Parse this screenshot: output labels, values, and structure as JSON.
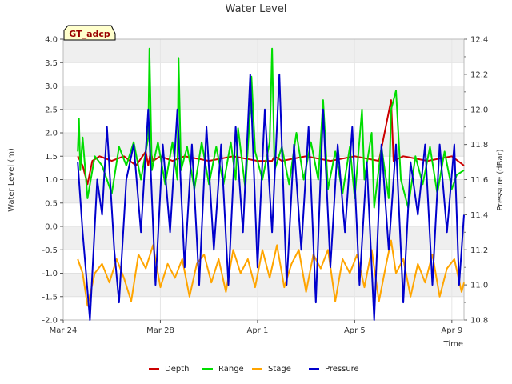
{
  "chart_data": {
    "type": "line",
    "title": "Water Level",
    "xlabel": "Time",
    "ylabel": "Water Level (m)",
    "y2label": "Pressure (dBar)",
    "badge": "GT_adcp",
    "xlim_days": [
      0,
      16.5
    ],
    "x_ticks": [
      {
        "day": 0,
        "label": "Mar 24"
      },
      {
        "day": 4,
        "label": "Mar 28"
      },
      {
        "day": 8,
        "label": "Apr 1"
      },
      {
        "day": 12,
        "label": "Apr 5"
      },
      {
        "day": 16,
        "label": "Apr 9"
      }
    ],
    "ylim": [
      -2.0,
      4.0
    ],
    "y_ticks": [
      "-2.0",
      "-1.5",
      "-1.0",
      "-0.5",
      "0.0",
      "0.5",
      "1.0",
      "1.5",
      "2.0",
      "2.5",
      "3.0",
      "3.5",
      "4.0"
    ],
    "y2lim": [
      10.8,
      12.4
    ],
    "y2_ticks": [
      "10.8",
      "11.0",
      "11.2",
      "11.4",
      "11.6",
      "11.8",
      "12.0",
      "12.2",
      "12.4"
    ],
    "grid": true,
    "legend_position": "bottom-center",
    "series": [
      {
        "name": "Depth",
        "color": "#cc0000",
        "axis": "left",
        "points": [
          [
            0.6,
            1.5
          ],
          [
            0.8,
            1.3
          ],
          [
            1.0,
            0.9
          ],
          [
            1.2,
            1.4
          ],
          [
            1.5,
            1.5
          ],
          [
            2.0,
            1.4
          ],
          [
            2.5,
            1.5
          ],
          [
            3.0,
            1.3
          ],
          [
            3.4,
            1.6
          ],
          [
            3.5,
            1.3
          ],
          [
            3.6,
            1.6
          ],
          [
            3.7,
            1.4
          ],
          [
            4.0,
            1.5
          ],
          [
            4.5,
            1.4
          ],
          [
            5.0,
            1.5
          ],
          [
            6.0,
            1.4
          ],
          [
            7.0,
            1.5
          ],
          [
            8.0,
            1.4
          ],
          [
            8.6,
            1.4
          ],
          [
            8.7,
            1.5
          ],
          [
            9.0,
            1.4
          ],
          [
            10.0,
            1.5
          ],
          [
            11.0,
            1.4
          ],
          [
            12.0,
            1.5
          ],
          [
            13.0,
            1.4
          ],
          [
            13.5,
            2.7
          ],
          [
            13.6,
            1.4
          ],
          [
            14.0,
            1.5
          ],
          [
            15.0,
            1.4
          ],
          [
            16.0,
            1.5
          ],
          [
            16.5,
            1.3
          ]
        ]
      },
      {
        "name": "Range",
        "color": "#00dd00",
        "axis": "left",
        "points": [
          [
            0.6,
            1.6
          ],
          [
            0.65,
            2.3
          ],
          [
            0.7,
            1.2
          ],
          [
            0.8,
            1.9
          ],
          [
            1.0,
            0.6
          ],
          [
            1.3,
            1.5
          ],
          [
            1.6,
            1.3
          ],
          [
            2.0,
            0.7
          ],
          [
            2.3,
            1.7
          ],
          [
            2.6,
            1.3
          ],
          [
            2.9,
            1.8
          ],
          [
            3.2,
            1.0
          ],
          [
            3.5,
            1.9
          ],
          [
            3.55,
            3.8
          ],
          [
            3.65,
            1.2
          ],
          [
            3.9,
            1.8
          ],
          [
            4.2,
            0.9
          ],
          [
            4.5,
            1.8
          ],
          [
            4.7,
            1.0
          ],
          [
            4.75,
            3.6
          ],
          [
            4.85,
            1.2
          ],
          [
            5.1,
            1.7
          ],
          [
            5.4,
            0.8
          ],
          [
            5.7,
            1.8
          ],
          [
            6.0,
            0.9
          ],
          [
            6.3,
            1.7
          ],
          [
            6.6,
            0.9
          ],
          [
            6.9,
            1.8
          ],
          [
            7.1,
            1.0
          ],
          [
            7.2,
            2.1
          ],
          [
            7.5,
            0.8
          ],
          [
            7.7,
            2.5
          ],
          [
            7.75,
            3.2
          ],
          [
            7.9,
            1.6
          ],
          [
            8.2,
            1.0
          ],
          [
            8.5,
            1.8
          ],
          [
            8.6,
            3.8
          ],
          [
            8.7,
            1.2
          ],
          [
            9.0,
            1.7
          ],
          [
            9.3,
            0.9
          ],
          [
            9.6,
            2.0
          ],
          [
            9.9,
            1.0
          ],
          [
            10.2,
            1.8
          ],
          [
            10.5,
            1.0
          ],
          [
            10.7,
            2.7
          ],
          [
            10.9,
            0.8
          ],
          [
            11.2,
            1.6
          ],
          [
            11.5,
            0.7
          ],
          [
            11.8,
            1.7
          ],
          [
            12.0,
            0.6
          ],
          [
            12.3,
            2.5
          ],
          [
            12.4,
            1.0
          ],
          [
            12.7,
            2.0
          ],
          [
            12.8,
            0.4
          ],
          [
            13.1,
            1.7
          ],
          [
            13.4,
            0.6
          ],
          [
            13.5,
            2.5
          ],
          [
            13.7,
            2.9
          ],
          [
            13.9,
            1.0
          ],
          [
            14.2,
            0.4
          ],
          [
            14.5,
            1.5
          ],
          [
            14.8,
            0.9
          ],
          [
            15.1,
            1.7
          ],
          [
            15.4,
            0.7
          ],
          [
            15.7,
            1.6
          ],
          [
            16.0,
            0.8
          ],
          [
            16.2,
            1.1
          ],
          [
            16.5,
            1.2
          ]
        ]
      },
      {
        "name": "Stage",
        "color": "#ffa500",
        "axis": "left",
        "points": [
          [
            0.6,
            -0.7
          ],
          [
            0.8,
            -1.0
          ],
          [
            1.0,
            -1.7
          ],
          [
            1.3,
            -1.0
          ],
          [
            1.6,
            -0.8
          ],
          [
            1.9,
            -1.2
          ],
          [
            2.2,
            -0.7
          ],
          [
            2.5,
            -1.1
          ],
          [
            2.8,
            -1.6
          ],
          [
            3.1,
            -0.6
          ],
          [
            3.4,
            -0.9
          ],
          [
            3.7,
            -0.4
          ],
          [
            4.0,
            -1.3
          ],
          [
            4.3,
            -0.8
          ],
          [
            4.6,
            -1.1
          ],
          [
            4.9,
            -0.7
          ],
          [
            5.2,
            -1.5
          ],
          [
            5.5,
            -0.8
          ],
          [
            5.8,
            -0.6
          ],
          [
            6.1,
            -1.2
          ],
          [
            6.4,
            -0.7
          ],
          [
            6.7,
            -1.4
          ],
          [
            7.0,
            -0.5
          ],
          [
            7.3,
            -1.0
          ],
          [
            7.6,
            -0.7
          ],
          [
            7.9,
            -1.3
          ],
          [
            8.2,
            -0.5
          ],
          [
            8.5,
            -1.1
          ],
          [
            8.8,
            -0.4
          ],
          [
            9.1,
            -1.3
          ],
          [
            9.4,
            -0.8
          ],
          [
            9.7,
            -0.5
          ],
          [
            10.0,
            -1.4
          ],
          [
            10.3,
            -0.6
          ],
          [
            10.6,
            -0.9
          ],
          [
            10.9,
            -0.5
          ],
          [
            11.2,
            -1.6
          ],
          [
            11.5,
            -0.7
          ],
          [
            11.8,
            -1.0
          ],
          [
            12.1,
            -0.6
          ],
          [
            12.4,
            -1.3
          ],
          [
            12.7,
            -0.5
          ],
          [
            13.0,
            -1.6
          ],
          [
            13.3,
            -0.8
          ],
          [
            13.5,
            -0.3
          ],
          [
            13.7,
            -1.0
          ],
          [
            14.0,
            -0.7
          ],
          [
            14.3,
            -1.5
          ],
          [
            14.6,
            -0.8
          ],
          [
            14.9,
            -1.2
          ],
          [
            15.2,
            -0.6
          ],
          [
            15.5,
            -1.5
          ],
          [
            15.8,
            -0.9
          ],
          [
            16.1,
            -0.7
          ],
          [
            16.4,
            -1.4
          ],
          [
            16.5,
            -1.2
          ]
        ]
      },
      {
        "name": "Pressure",
        "color": "#0000cc",
        "axis": "right",
        "points": [
          [
            0.6,
            11.7
          ],
          [
            0.8,
            11.3
          ],
          [
            1.1,
            10.8
          ],
          [
            1.4,
            11.6
          ],
          [
            1.6,
            11.4
          ],
          [
            1.8,
            11.9
          ],
          [
            2.1,
            11.2
          ],
          [
            2.3,
            10.9
          ],
          [
            2.6,
            11.6
          ],
          [
            2.9,
            11.8
          ],
          [
            3.2,
            11.3
          ],
          [
            3.5,
            12.0
          ],
          [
            3.8,
            11.0
          ],
          [
            4.1,
            11.8
          ],
          [
            4.4,
            11.3
          ],
          [
            4.7,
            12.0
          ],
          [
            5.0,
            11.1
          ],
          [
            5.3,
            11.8
          ],
          [
            5.6,
            11.0
          ],
          [
            5.9,
            11.9
          ],
          [
            6.2,
            11.2
          ],
          [
            6.5,
            11.8
          ],
          [
            6.8,
            11.0
          ],
          [
            7.1,
            11.9
          ],
          [
            7.4,
            11.3
          ],
          [
            7.7,
            12.2
          ],
          [
            8.0,
            11.1
          ],
          [
            8.3,
            12.0
          ],
          [
            8.6,
            11.3
          ],
          [
            8.9,
            12.2
          ],
          [
            9.2,
            11.0
          ],
          [
            9.5,
            11.8
          ],
          [
            9.8,
            11.2
          ],
          [
            10.1,
            11.9
          ],
          [
            10.4,
            10.9
          ],
          [
            10.7,
            12.0
          ],
          [
            11.0,
            11.1
          ],
          [
            11.3,
            11.8
          ],
          [
            11.6,
            11.3
          ],
          [
            11.9,
            11.9
          ],
          [
            12.2,
            11.0
          ],
          [
            12.5,
            11.7
          ],
          [
            12.8,
            10.8
          ],
          [
            13.1,
            11.8
          ],
          [
            13.4,
            11.2
          ],
          [
            13.7,
            11.8
          ],
          [
            14.0,
            10.9
          ],
          [
            14.3,
            11.7
          ],
          [
            14.6,
            11.4
          ],
          [
            14.9,
            11.8
          ],
          [
            15.2,
            11.0
          ],
          [
            15.5,
            11.8
          ],
          [
            15.8,
            11.3
          ],
          [
            16.1,
            11.8
          ],
          [
            16.3,
            11.0
          ],
          [
            16.5,
            11.4
          ]
        ]
      }
    ]
  }
}
